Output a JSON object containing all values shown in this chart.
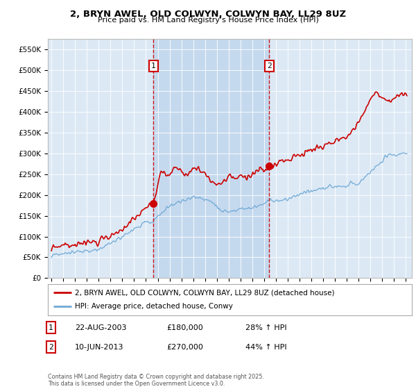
{
  "title1": "2, BRYN AWEL, OLD COLWYN, COLWYN BAY, LL29 8UZ",
  "title2": "Price paid vs. HM Land Registry's House Price Index (HPI)",
  "ylabel_ticks": [
    "£0",
    "£50K",
    "£100K",
    "£150K",
    "£200K",
    "£250K",
    "£300K",
    "£350K",
    "£400K",
    "£450K",
    "£500K",
    "£550K"
  ],
  "ytick_values": [
    0,
    50000,
    100000,
    150000,
    200000,
    250000,
    300000,
    350000,
    400000,
    450000,
    500000,
    550000
  ],
  "plot_bg": "#dce9f5",
  "shade_color": "#c5d9ee",
  "red_line_color": "#cc0000",
  "blue_line_color": "#6fa8d5",
  "vline_color": "#cc0000",
  "sale1_date": 2003.64,
  "sale1_price": 180000,
  "sale2_date": 2013.44,
  "sale2_price": 270000,
  "legend1": "2, BRYN AWEL, OLD COLWYN, COLWYN BAY, LL29 8UZ (detached house)",
  "legend2": "HPI: Average price, detached house, Conwy",
  "note1_label": "1",
  "note1_date": "22-AUG-2003",
  "note1_price": "£180,000",
  "note1_hpi": "28% ↑ HPI",
  "note2_label": "2",
  "note2_date": "10-JUN-2013",
  "note2_price": "£270,000",
  "note2_hpi": "44% ↑ HPI",
  "footer": "Contains HM Land Registry data © Crown copyright and database right 2025.\nThis data is licensed under the Open Government Licence v3.0.",
  "xmin": 1994.7,
  "xmax": 2025.5,
  "ymin": 0,
  "ymax": 575000
}
